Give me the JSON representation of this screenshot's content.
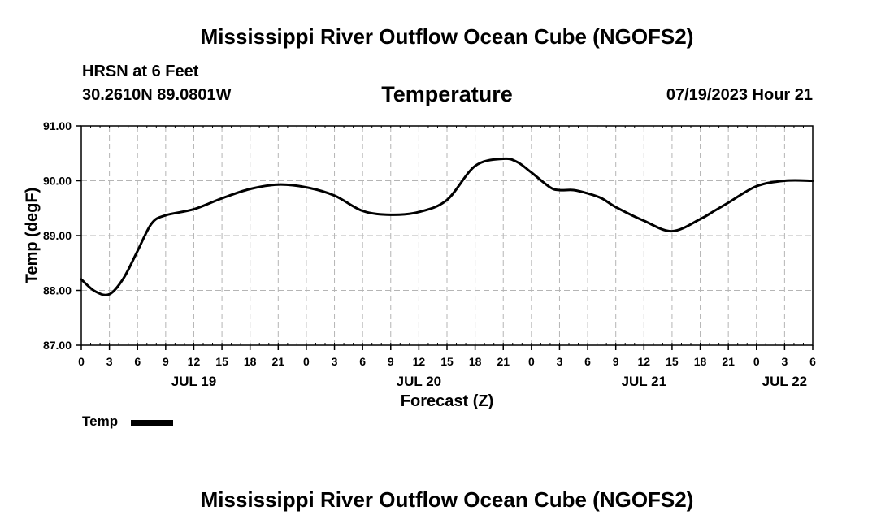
{
  "header": {
    "title": "Mississippi River Outflow Ocean Cube (NGOFS2)",
    "station": "HRSN at 6 Feet",
    "coordinates": "30.2610N  89.0801W",
    "variable": "Temperature",
    "datetime": "07/19/2023 Hour 21"
  },
  "footer": {
    "title": "Mississippi River Outflow Ocean Cube (NGOFS2)"
  },
  "legend": {
    "label": "Temp",
    "color": "#000000"
  },
  "chart_data": {
    "type": "line",
    "title": "Temperature",
    "xlabel": "Forecast (Z)",
    "ylabel": "Temp (degF)",
    "x_unit": "hours since JUL 19 00Z",
    "xlim": [
      0,
      78
    ],
    "ylim": [
      87.0,
      91.0
    ],
    "grid": true,
    "legend_position": "bottom-left",
    "y_ticks": [
      87.0,
      88.0,
      89.0,
      90.0,
      91.0
    ],
    "y_tick_labels": [
      "87.00",
      "88.00",
      "89.00",
      "90.00",
      "91.00"
    ],
    "x_ticks": [
      0,
      3,
      6,
      9,
      12,
      15,
      18,
      21,
      24,
      27,
      30,
      33,
      36,
      39,
      42,
      45,
      48,
      51,
      54,
      57,
      60,
      63,
      66,
      69,
      72,
      75,
      78
    ],
    "x_tick_labels": [
      "0",
      "3",
      "6",
      "9",
      "12",
      "15",
      "18",
      "21",
      "0",
      "3",
      "6",
      "9",
      "12",
      "15",
      "18",
      "21",
      "0",
      "3",
      "6",
      "9",
      "12",
      "15",
      "18",
      "21",
      "0",
      "3",
      "6"
    ],
    "date_labels": [
      {
        "text": "JUL 19",
        "x": 12
      },
      {
        "text": "JUL 20",
        "x": 36
      },
      {
        "text": "JUL 21",
        "x": 60
      },
      {
        "text": "JUL 22",
        "x": 75
      }
    ],
    "series": [
      {
        "name": "Temp",
        "color": "#000000",
        "x": [
          0,
          1.5,
          3,
          4.5,
          6,
          7.5,
          9,
          12,
          15,
          18,
          21,
          24,
          27,
          30,
          33,
          36,
          39,
          42,
          45,
          46.5,
          48,
          50,
          51,
          52.5,
          54,
          55.5,
          57,
          60,
          63,
          66,
          67.5,
          69,
          72,
          75,
          78
        ],
        "values": [
          88.2,
          87.98,
          87.93,
          88.22,
          88.72,
          89.22,
          89.37,
          89.48,
          89.68,
          89.85,
          89.93,
          89.88,
          89.73,
          89.45,
          89.38,
          89.43,
          89.65,
          90.27,
          90.4,
          90.34,
          90.15,
          89.88,
          89.83,
          89.83,
          89.77,
          89.68,
          89.52,
          89.27,
          89.08,
          89.3,
          89.45,
          89.6,
          89.9,
          90.0,
          90.0
        ]
      }
    ]
  }
}
